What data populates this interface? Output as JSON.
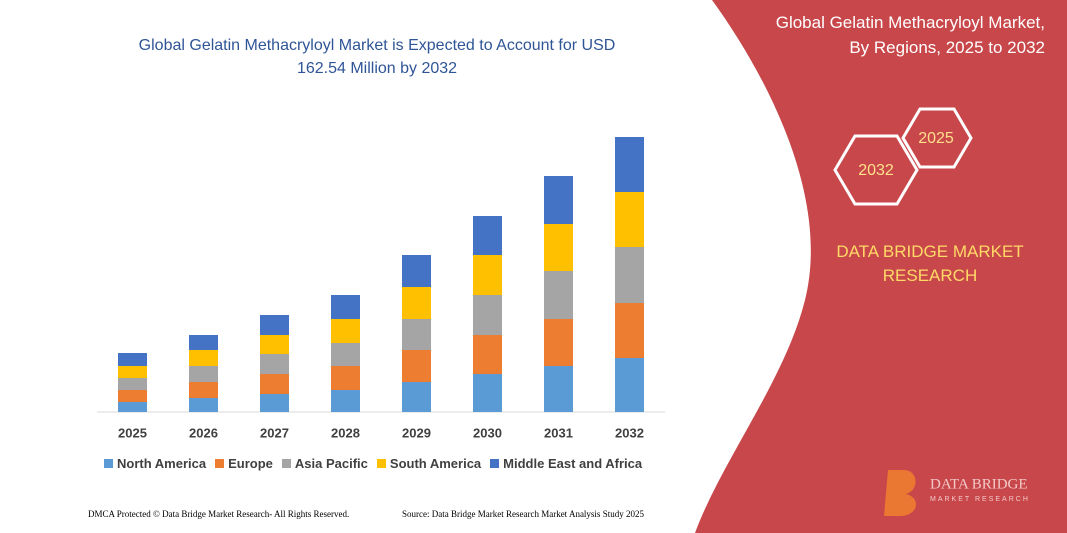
{
  "chart_data": {
    "type": "stacked-bar",
    "title": "Global Gelatin Methacryloyl Market is Expected to Account for USD 162.54 Million by 2032",
    "categories": [
      "2025",
      "2026",
      "2027",
      "2028",
      "2029",
      "2030",
      "2031",
      "2032"
    ],
    "series": [
      {
        "name": "North America",
        "color": "#5b9bd5",
        "values": [
          10,
          14,
          18,
          22,
          30,
          38,
          46,
          54
        ]
      },
      {
        "name": "Europe",
        "color": "#ed7d31",
        "values": [
          12,
          16,
          20,
          24,
          32,
          39,
          47,
          55
        ]
      },
      {
        "name": "Asia Pacific",
        "color": "#a5a5a5",
        "values": [
          12,
          16,
          20,
          23,
          31,
          40,
          48,
          56
        ]
      },
      {
        "name": "South America",
        "color": "#ffc000",
        "values": [
          12,
          16,
          19,
          24,
          32,
          40,
          47,
          55
        ]
      },
      {
        "name": "Middle East and Africa",
        "color": "#4472c4",
        "values": [
          13,
          15,
          20,
          24,
          32,
          39,
          48,
          55
        ]
      }
    ],
    "ylim": [
      0,
      280
    ]
  },
  "panel": {
    "title_lines": [
      "Global Gelatin Methacryloyl Market,",
      "By Regions, 2025 to 2032"
    ],
    "hex_right": "2025",
    "hex_left": "2032",
    "brand": "DATA BRIDGE MARKET RESEARCH",
    "logo": "DATA BRIDGE",
    "logo_sub": "MARKET RESEARCH"
  },
  "footer": {
    "left": "DMCA Protected © Data Bridge Market Research- All Rights Reserved.",
    "right": "Source: Data Bridge Market Research  Market Analysis Study 2025"
  }
}
